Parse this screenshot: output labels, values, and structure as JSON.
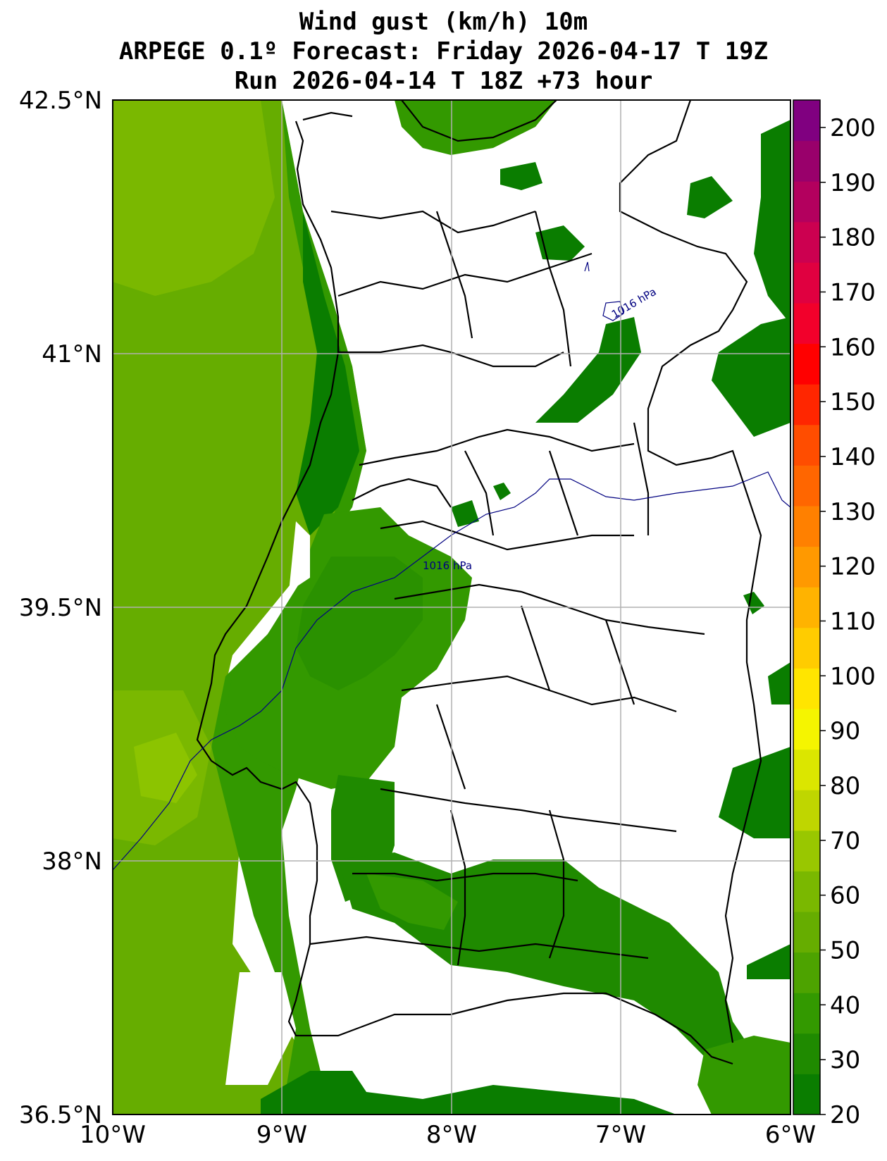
{
  "title": {
    "line1": "Wind gust (km/h) 10m",
    "line2": "ARPEGE 0.1º Forecast: Friday 2026-04-17 T 19Z",
    "line3": "Run 2026-04-14 T 18Z +73 hour"
  },
  "map": {
    "lat_labels": [
      "42.5°N",
      "41°N",
      "39.5°N",
      "38°N",
      "36.5°N"
    ],
    "lon_labels": [
      "10°W",
      "9°W",
      "8°W",
      "7°W",
      "6°W"
    ],
    "isobar_labels": [
      "1016 hPa",
      "1016 hPa"
    ],
    "gridlines": true
  },
  "colorbar": {
    "tick_labels": [
      "20",
      "30",
      "40",
      "50",
      "60",
      "70",
      "80",
      "90",
      "100",
      "110",
      "120",
      "130",
      "140",
      "150",
      "160",
      "170",
      "180",
      "190",
      "200"
    ],
    "colors": [
      "#0a7d00",
      "#1f8a00",
      "#339900",
      "#4da300",
      "#66ad00",
      "#7ab800",
      "#99c700",
      "#bfd600",
      "#dbe600",
      "#f5f500",
      "#ffe500",
      "#ffcc00",
      "#ffb300",
      "#ff9900",
      "#ff8000",
      "#ff6600",
      "#ff4d00",
      "#ff2600",
      "#ff0000",
      "#f2002b",
      "#e00040",
      "#cc0050",
      "#b3005e",
      "#99006b",
      "#800080"
    ]
  }
}
